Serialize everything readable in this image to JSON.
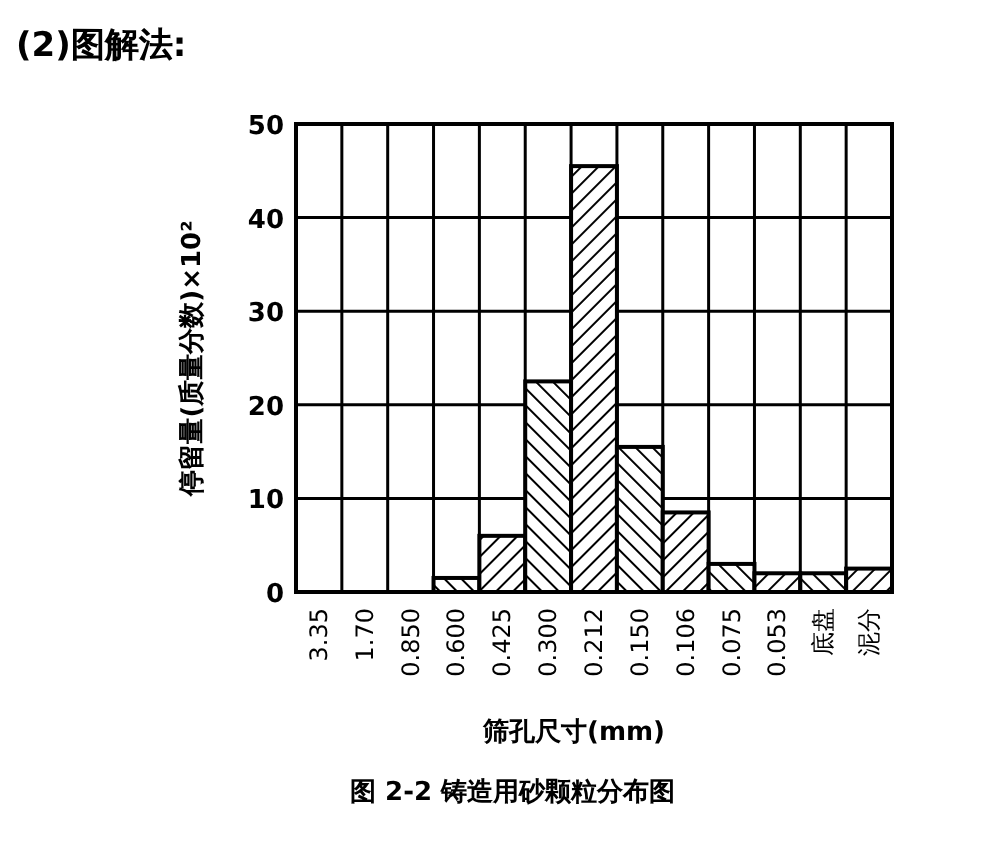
{
  "chart_data": {
    "type": "bar",
    "title": "(2)图解法:",
    "xlabel": "筛孔尺寸(mm)",
    "ylabel": "停留量(质量分数)×10²",
    "annotations": [
      "图 2-2   铸造用砂颗粒分布图"
    ],
    "categories": [
      "3.35",
      "1.70",
      "0.850",
      "0.600",
      "0.425",
      "0.300",
      "0.212",
      "0.150",
      "0.106",
      "0.075",
      "0.053",
      "底盘",
      "泥分"
    ],
    "values": [
      0,
      0,
      0,
      1.5,
      6,
      22.5,
      45.5,
      15.5,
      8.5,
      3,
      2,
      2,
      2.5
    ],
    "color": "#000000",
    "ylim": [
      0,
      50
    ],
    "yticks": [
      0,
      10,
      20,
      30,
      40,
      50
    ],
    "grid": true
  }
}
